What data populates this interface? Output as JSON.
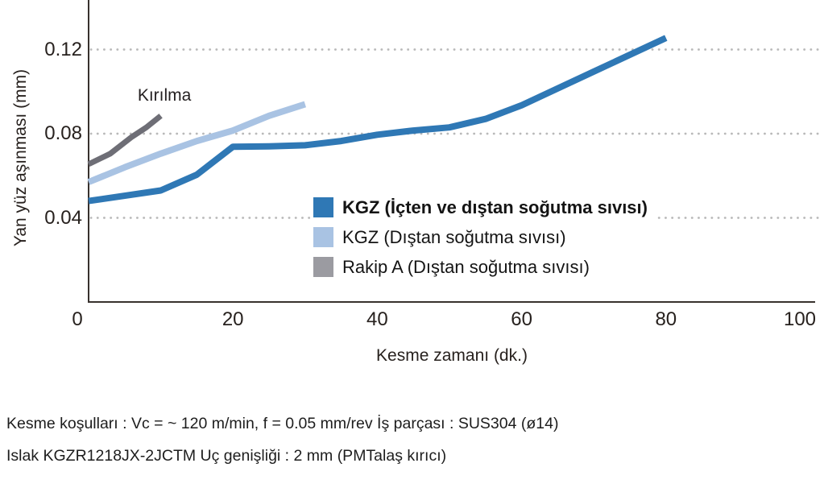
{
  "colors": {
    "series_dark_blue": "#2F78B5",
    "series_light_blue": "#A9C3E3",
    "series_gray_line": "#6E6E76",
    "legend_gray_swatch": "#9B9BA1",
    "grid_dot": "#b9b9b9",
    "axis": "#38322e",
    "text": "#27211e",
    "background": "#ffffff"
  },
  "chart_data": {
    "type": "line",
    "title": "",
    "xlabel": "Kesme zamanı (dk.)",
    "ylabel": "Yan yüz aşınması (mm)",
    "xlim": [
      0,
      100
    ],
    "ylim": [
      0,
      0.144
    ],
    "xticks": [
      {
        "label": "0",
        "value": 0
      },
      {
        "label": "20",
        "value": 20
      },
      {
        "label": "40",
        "value": 40
      },
      {
        "label": "60",
        "value": 60
      },
      {
        "label": "80",
        "value": 80
      },
      {
        "label": "100",
        "value": 100
      }
    ],
    "yticks": [
      {
        "label": "0.04",
        "value": 0.04
      },
      {
        "label": "0.08",
        "value": 0.08
      },
      {
        "label": "0.12",
        "value": 0.12
      }
    ],
    "grid": "horizontal dotted lines at each y tick",
    "legend_position": "inside plot, center-right",
    "annotation": {
      "text": "Kırılma",
      "x": 10.5,
      "y": 0.098
    },
    "series": [
      {
        "name": "KGZ (İçten ve dıştan soğutma sıvısı)",
        "color": "#2F78B5",
        "legend_color": "#2F78B5",
        "legend_bold": true,
        "line_width": 8,
        "x": [
          0,
          5,
          10,
          15,
          20,
          25,
          30,
          35,
          40,
          45,
          50,
          55,
          60,
          70,
          80
        ],
        "y": [
          0.048,
          0.0505,
          0.053,
          0.0605,
          0.0738,
          0.074,
          0.0745,
          0.0765,
          0.0795,
          0.0815,
          0.083,
          0.087,
          0.0935,
          0.1095,
          0.1255
        ]
      },
      {
        "name": "KGZ (Dıştan soğutma sıvısı)",
        "color": "#A9C3E3",
        "legend_color": "#A9C3E3",
        "legend_bold": false,
        "line_width": 8,
        "x": [
          0,
          5,
          10,
          15,
          20,
          25,
          30
        ],
        "y": [
          0.057,
          0.064,
          0.0705,
          0.0765,
          0.0815,
          0.0885,
          0.094
        ]
      },
      {
        "name": "Rakip A (Dıştan soğutma sıvısı)",
        "color": "#6E6E76",
        "legend_color": "#9B9BA1",
        "legend_bold": false,
        "line_width": 7,
        "note": "line ends at breakage (Kırılma)",
        "x": [
          0,
          3,
          6,
          8,
          10
        ],
        "y": [
          0.0655,
          0.0705,
          0.0785,
          0.083,
          0.0885
        ]
      }
    ]
  },
  "footer": {
    "line1": "Kesme koşulları : Vc = ~ 120 m/min, f = 0.05 mm/rev İş parçası : SUS304 (ø14)",
    "line2": "Islak KGZR1218JX-2JCTM Uç genişliği : 2 mm (PMTalaş kırıcı)"
  }
}
